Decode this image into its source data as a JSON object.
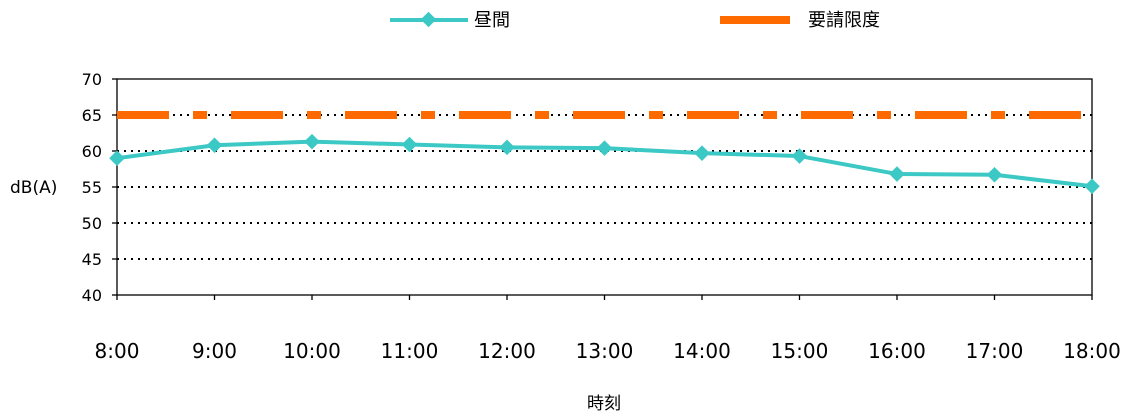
{
  "chart_data": {
    "type": "line",
    "categories": [
      "8:00",
      "9:00",
      "10:00",
      "11:00",
      "12:00",
      "13:00",
      "14:00",
      "15:00",
      "16:00",
      "17:00",
      "18:00"
    ],
    "series": [
      {
        "name": "昼間",
        "values": [
          59.0,
          60.8,
          61.3,
          60.9,
          60.5,
          60.4,
          59.7,
          59.3,
          56.8,
          56.7,
          55.1
        ],
        "color": "#3cc8c4",
        "marker": "diamond"
      },
      {
        "name": "要請限度",
        "values": [
          65,
          65,
          65,
          65,
          65,
          65,
          65,
          65,
          65,
          65,
          65
        ],
        "color": "#ff6a00",
        "style": "dash-dot"
      }
    ],
    "xlabel": "時刻",
    "ylabel": "dB(A)",
    "ylim": [
      40,
      70
    ],
    "yticks": [
      40,
      45,
      50,
      55,
      60,
      65,
      70
    ],
    "grid": "horizontal dotted",
    "legend": "top"
  }
}
